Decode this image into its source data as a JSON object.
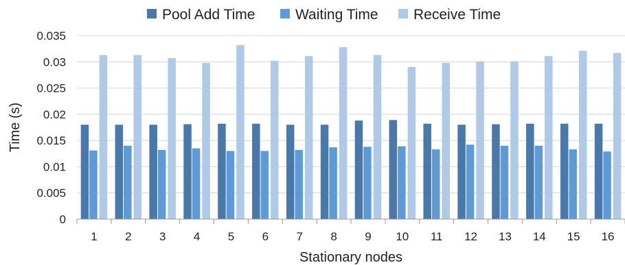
{
  "chart_data": {
    "type": "bar",
    "title": "",
    "xlabel": "Stationary nodes",
    "ylabel": "Time (s)",
    "ylim": [
      0,
      0.035
    ],
    "yticks": [
      "0",
      "0.005",
      "0.01",
      "0.015",
      "0.02",
      "0.025",
      "0.03",
      "0.035"
    ],
    "grid": "horizontal",
    "legend_position": "top",
    "categories": [
      "1",
      "2",
      "3",
      "4",
      "5",
      "6",
      "7",
      "8",
      "9",
      "10",
      "11",
      "12",
      "13",
      "14",
      "15",
      "16"
    ],
    "series": [
      {
        "name": "Pool Add Time",
        "color": "#4a78a8",
        "values": [
          0.018,
          0.018,
          0.018,
          0.0181,
          0.0182,
          0.0182,
          0.018,
          0.018,
          0.0188,
          0.0189,
          0.0182,
          0.018,
          0.0181,
          0.0182,
          0.0182,
          0.0182
        ]
      },
      {
        "name": "Waiting Time",
        "color": "#5e9bd6",
        "values": [
          0.0131,
          0.014,
          0.0132,
          0.0135,
          0.013,
          0.013,
          0.0132,
          0.0137,
          0.0138,
          0.0139,
          0.0133,
          0.0142,
          0.014,
          0.014,
          0.0133,
          0.0129
        ]
      },
      {
        "name": "Receive Time",
        "color": "#b0c9e6",
        "values": [
          0.0313,
          0.0313,
          0.0307,
          0.0298,
          0.0332,
          0.0302,
          0.0311,
          0.0328,
          0.0313,
          0.029,
          0.0298,
          0.0301,
          0.0301,
          0.0311,
          0.0321,
          0.0317
        ]
      }
    ]
  }
}
